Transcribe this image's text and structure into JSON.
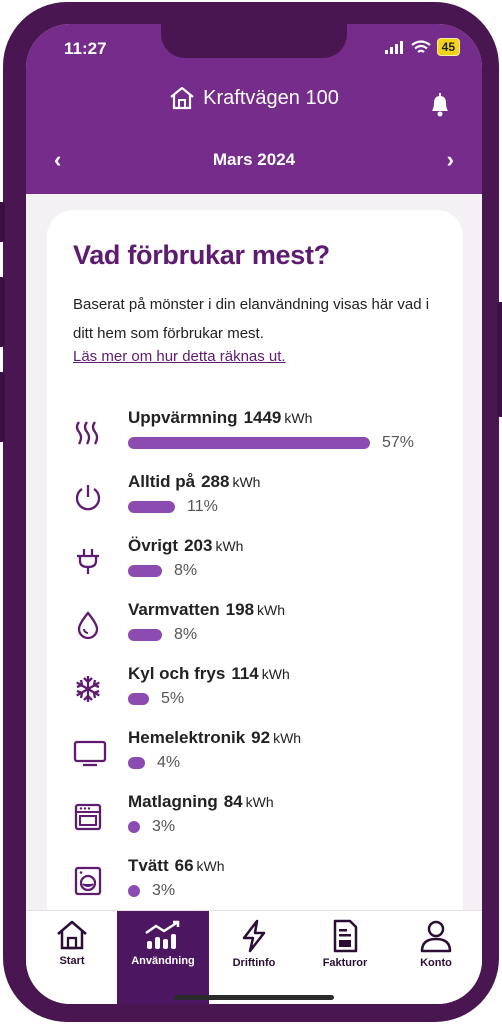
{
  "status_bar": {
    "time": "11:27",
    "battery": "45"
  },
  "header": {
    "address": "Kraftvägen 100",
    "month": "Mars 2024",
    "prev": "‹",
    "next": "›"
  },
  "card": {
    "title": "Vad förbrukar mest?",
    "description": "Baserat på mönster i din elanvändning visas här vad i ditt hem som förbrukar mest.",
    "link": "Läs mer om hur detta räknas ut."
  },
  "categories": [
    {
      "name": "Uppvärmning",
      "value": "1449",
      "unit": "kWh",
      "percent": "57%",
      "share": 57,
      "icon": "heating-icon"
    },
    {
      "name": "Alltid på",
      "value": "288",
      "unit": "kWh",
      "percent": "11%",
      "share": 11,
      "icon": "power-icon"
    },
    {
      "name": "Övrigt",
      "value": "203",
      "unit": "kWh",
      "percent": "8%",
      "share": 8,
      "icon": "plug-icon"
    },
    {
      "name": "Varmvatten",
      "value": "198",
      "unit": "kWh",
      "percent": "8%",
      "share": 8,
      "icon": "water-drop-icon"
    },
    {
      "name": "Kyl och frys",
      "value": "114",
      "unit": "kWh",
      "percent": "5%",
      "share": 5,
      "icon": "snowflake-icon"
    },
    {
      "name": "Hemelektronik",
      "value": "92",
      "unit": "kWh",
      "percent": "4%",
      "share": 4,
      "icon": "tv-icon"
    },
    {
      "name": "Matlagning",
      "value": "84",
      "unit": "kWh",
      "percent": "3%",
      "share": 3,
      "icon": "oven-icon"
    },
    {
      "name": "Tvätt",
      "value": "66",
      "unit": "kWh",
      "percent": "3%",
      "share": 3,
      "icon": "washing-machine-icon"
    }
  ],
  "tabs": [
    {
      "label": "Start",
      "icon": "home-icon",
      "active": false
    },
    {
      "label": "Användning",
      "icon": "usage-chart-icon",
      "active": true
    },
    {
      "label": "Driftinfo",
      "icon": "lightning-icon",
      "active": false
    },
    {
      "label": "Fakturor",
      "icon": "invoice-icon",
      "active": false
    },
    {
      "label": "Konto",
      "icon": "person-icon",
      "active": false
    }
  ],
  "colors": {
    "brand": "#752c8a",
    "bar": "#8c4bb0",
    "title": "#5e1b70",
    "tab_active": "#4d1661"
  }
}
